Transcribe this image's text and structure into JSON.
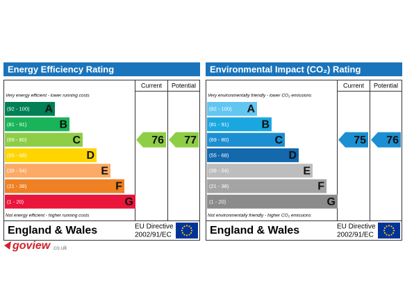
{
  "panels": [
    {
      "title": "Energy Efficiency Rating",
      "col_headers": [
        "Current",
        "Potential"
      ],
      "top_note": "Very energy efficient - lower running costs",
      "bottom_note": "Not energy efficient - higher running costs",
      "bands": [
        {
          "range": "(92 - 100)",
          "letter": "A",
          "color": "#008054"
        },
        {
          "range": "(81 - 91)",
          "letter": "B",
          "color": "#19b459"
        },
        {
          "range": "(69 - 80)",
          "letter": "C",
          "color": "#8dce46"
        },
        {
          "range": "(55 - 68)",
          "letter": "D",
          "color": "#ffd500"
        },
        {
          "range": "(39 - 54)",
          "letter": "E",
          "color": "#fcaa65"
        },
        {
          "range": "(21 - 38)",
          "letter": "F",
          "color": "#ef8023"
        },
        {
          "range": "(1 - 20)",
          "letter": "G",
          "color": "#e9153b"
        }
      ],
      "current": 76,
      "potential": 77,
      "region": "England & Wales",
      "directive": [
        "EU Directive",
        "2002/91/EC"
      ]
    },
    {
      "title": "Environmental Impact (CO₂) Rating",
      "col_headers": [
        "Current",
        "Potential"
      ],
      "top_note": "Very environmentally friendly - lower CO₂ emissions",
      "bottom_note": "Not environmentally friendly - higher CO₂ emissions",
      "bands": [
        {
          "range": "(92 - 100)",
          "letter": "A",
          "color": "#63c6f0"
        },
        {
          "range": "(81 - 91)",
          "letter": "B",
          "color": "#1aa7e0"
        },
        {
          "range": "(69 - 80)",
          "letter": "C",
          "color": "#1b8fd1"
        },
        {
          "range": "(55 - 68)",
          "letter": "D",
          "color": "#1469ad"
        },
        {
          "range": "(39 - 54)",
          "letter": "E",
          "color": "#bdbdbd"
        },
        {
          "range": "(21 - 38)",
          "letter": "F",
          "color": "#a4a4a4"
        },
        {
          "range": "(1 - 20)",
          "letter": "G",
          "color": "#8b8b8b"
        }
      ],
      "current": 75,
      "potential": 76,
      "region": "England & Wales",
      "directive": [
        "EU Directive",
        "2002/91/EC"
      ]
    }
  ],
  "logo": {
    "brand": "goview",
    "suffix": ".co.uk"
  }
}
